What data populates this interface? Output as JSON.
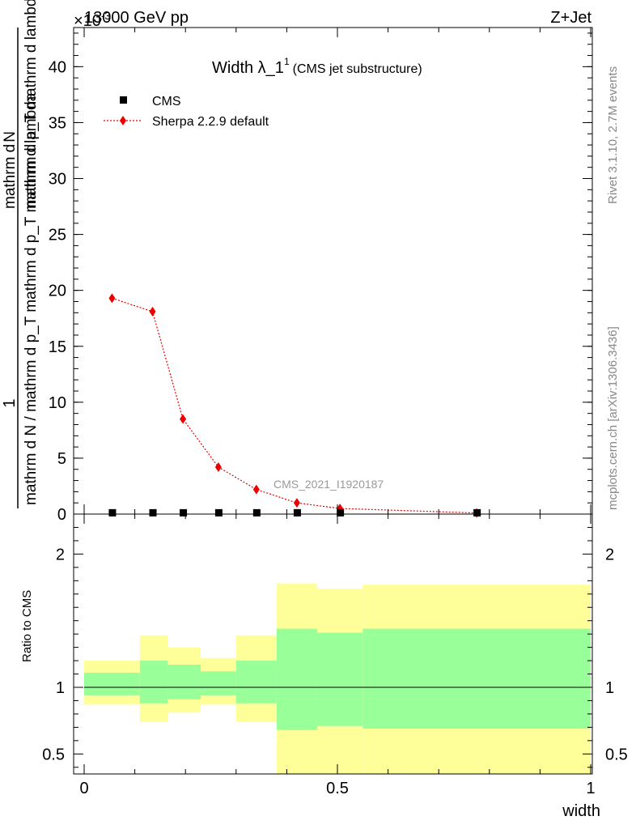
{
  "header": {
    "energy_label": "13000 GeV pp",
    "process_label": "Z+Jet",
    "exponent_label": "×10",
    "exponent_sup": "-3"
  },
  "side_labels": {
    "rivet": "Rivet 3.1.10,  2.7M events",
    "mcplots": "mcplots.cern.ch [arXiv:1306.3436]"
  },
  "watermark": "CMS_2021_I1920187",
  "chart_data": [
    {
      "type": "line",
      "title": "Width λ_1",
      "title_sup": "1",
      "subtitle": "(CMS jet substructure)",
      "ylabel_numerator": "1",
      "ylabel_denominator": "mathrm d N / mathrm d p_T mathrm d p_T mathrm d lambda",
      "ylabel_top": "mathrm d",
      "ylabel_top_N": "N",
      "ylabel_bottom": "mathrm d p_T mathrm d lambda",
      "xlim": [
        0,
        1
      ],
      "ylim": [
        0,
        0.0435
      ],
      "yticks": [
        {
          "v": 0,
          "label": "0"
        },
        {
          "v": 0.005,
          "label": "5"
        },
        {
          "v": 0.01,
          "label": "10"
        },
        {
          "v": 0.015,
          "label": "15"
        },
        {
          "v": 0.02,
          "label": "20"
        },
        {
          "v": 0.025,
          "label": "25"
        },
        {
          "v": 0.03,
          "label": "30"
        },
        {
          "v": 0.035,
          "label": "35"
        },
        {
          "v": 0.04,
          "label": "40"
        }
      ],
      "legend_position": "top-left",
      "series": [
        {
          "name": "CMS",
          "color": "#000000",
          "marker": "square",
          "x": [
            0.055,
            0.135,
            0.195,
            0.265,
            0.34,
            0.42,
            0.505,
            0.775
          ],
          "y": [
            8e-05,
            8e-05,
            8e-05,
            8e-05,
            8e-05,
            8e-05,
            8e-05,
            8e-05
          ]
        },
        {
          "name": "Sherpa 2.2.9 default",
          "color": "#ee0000",
          "marker": "diamond",
          "line": "dotted",
          "x": [
            0.055,
            0.135,
            0.195,
            0.265,
            0.34,
            0.42,
            0.505,
            0.775
          ],
          "y": [
            0.0193,
            0.0181,
            0.0085,
            0.0042,
            0.0022,
            0.001,
            0.0005,
            0.0001
          ]
        }
      ]
    },
    {
      "type": "area",
      "ylabel": "Ratio to CMS",
      "xlabel": "width",
      "xlim": [
        0,
        1
      ],
      "ylim": [
        0.35,
        2.3
      ],
      "yticks_left": [
        {
          "v": 0.5,
          "label": "0.5"
        },
        {
          "v": 1,
          "label": "1"
        },
        {
          "v": 2,
          "label": "2"
        }
      ],
      "yticks_right": [
        {
          "v": 0.5,
          "label": "0.5"
        },
        {
          "v": 1,
          "label": "1"
        },
        {
          "v": 2,
          "label": "2"
        }
      ],
      "xticks": [
        {
          "v": 0,
          "label": "0"
        },
        {
          "v": 0.5,
          "label": "0.5"
        },
        {
          "v": 1,
          "label": "1"
        }
      ],
      "reference_line": 1,
      "bands": [
        {
          "x0": 0.0,
          "x1": 0.11,
          "inner": [
            0.94,
            1.11
          ],
          "outer": [
            0.87,
            1.2
          ]
        },
        {
          "x0": 0.11,
          "x1": 0.165,
          "inner": [
            0.88,
            1.2
          ],
          "outer": [
            0.74,
            1.39
          ]
        },
        {
          "x0": 0.165,
          "x1": 0.23,
          "inner": [
            0.91,
            1.17
          ],
          "outer": [
            0.81,
            1.3
          ]
        },
        {
          "x0": 0.23,
          "x1": 0.3,
          "inner": [
            0.94,
            1.12
          ],
          "outer": [
            0.87,
            1.22
          ]
        },
        {
          "x0": 0.3,
          "x1": 0.38,
          "inner": [
            0.88,
            1.2
          ],
          "outer": [
            0.74,
            1.39
          ]
        },
        {
          "x0": 0.38,
          "x1": 0.46,
          "inner": [
            0.68,
            1.44
          ],
          "outer": [
            0.35,
            1.78
          ]
        },
        {
          "x0": 0.46,
          "x1": 0.55,
          "inner": [
            0.71,
            1.41
          ],
          "outer": [
            0.35,
            1.74
          ]
        },
        {
          "x0": 0.55,
          "x1": 1.0,
          "inner": [
            0.69,
            1.44
          ],
          "outer": [
            0.35,
            1.77
          ]
        }
      ],
      "inner_color": "#99ff99",
      "outer_color": "#ffff99"
    }
  ]
}
